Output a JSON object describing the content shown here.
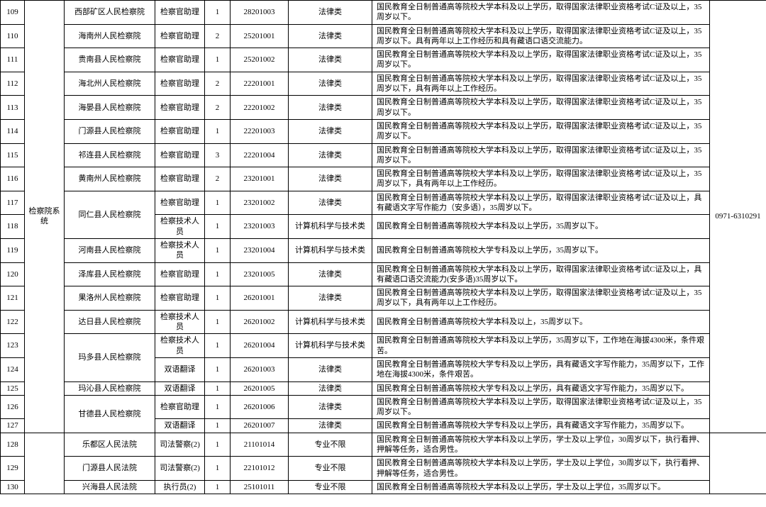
{
  "system_group1": "检察院系统",
  "phone1": "0971-6310291",
  "rows": [
    {
      "idx": "109",
      "org": "西部矿区人民检察院",
      "pos": "检察官助理",
      "cnt": "1",
      "code": "28201003",
      "cat": "法律类",
      "req": "国民教育全日制普通高等院校大学本科及以上学历，取得国家法律职业资格考试C证及以上，35周岁以下。"
    },
    {
      "idx": "110",
      "org": "海南州人民检察院",
      "pos": "检察官助理",
      "cnt": "2",
      "code": "25201001",
      "cat": "法律类",
      "req": "国民教育全日制普通高等院校大学本科及以上学历，取得国家法律职业资格考试C证及以上，35周岁以下。具有两年以上工作经历和具有藏语口语交流能力。"
    },
    {
      "idx": "111",
      "org": "贵南县人民检察院",
      "pos": "检察官助理",
      "cnt": "1",
      "code": "25201002",
      "cat": "法律类",
      "req": "国民教育全日制普通高等院校大学本科及以上学历，取得国家法律职业资格考试C证及以上，35周岁以下。"
    },
    {
      "idx": "112",
      "org": "海北州人民检察院",
      "pos": "检察官助理",
      "cnt": "2",
      "code": "22201001",
      "cat": "法律类",
      "req": "国民教育全日制普通高等院校大学本科及以上学历，取得国家法律职业资格考试C证及以上，35周岁以下，具有两年以上工作经历。"
    },
    {
      "idx": "113",
      "org": "海晏县人民检察院",
      "pos": "检察官助理",
      "cnt": "2",
      "code": "22201002",
      "cat": "法律类",
      "req": "国民教育全日制普通高等院校大学本科及以上学历，取得国家法律职业资格考试C证及以上，35周岁以下。"
    },
    {
      "idx": "114",
      "org": "门源县人民检察院",
      "pos": "检察官助理",
      "cnt": "1",
      "code": "22201003",
      "cat": "法律类",
      "req": "国民教育全日制普通高等院校大学本科及以上学历，取得国家法律职业资格考试C证及以上，35周岁以下。"
    },
    {
      "idx": "115",
      "org": "祁连县人民检察院",
      "pos": "检察官助理",
      "cnt": "3",
      "code": "22201004",
      "cat": "法律类",
      "req": "国民教育全日制普通高等院校大学本科及以上学历，取得国家法律职业资格考试C证及以上，35周岁以下。"
    },
    {
      "idx": "116",
      "org": "黄南州人民检察院",
      "pos": "检察官助理",
      "cnt": "2",
      "code": "23201001",
      "cat": "法律类",
      "req": "国民教育全日制普通高等院校大学本科及以上学历，取得国家法律职业资格考试C证及以上，35周岁以下，具有两年以上工作经历。"
    },
    {
      "idx": "117",
      "org": "同仁县人民检察院",
      "org_rowspan": 2,
      "pos": "检察官助理",
      "cnt": "1",
      "code": "23201002",
      "cat": "法律类",
      "req": "国民教育全日制普通高等院校大学本科及以上学历，取得国家法律职业资格考试C证及以上，具有藏语文字写作能力（安多语），35周岁以下。"
    },
    {
      "idx": "118",
      "pos": "检察技术人员",
      "cnt": "1",
      "code": "23201003",
      "cat": "计算机科学与技术类",
      "req": "国民教育全日制普通高等院校大学本科及以上学历，35周岁以下。"
    },
    {
      "idx": "119",
      "org": "河南县人民检察院",
      "pos": "检察技术人员",
      "cnt": "1",
      "code": "23201004",
      "cat": "计算机科学与技术类",
      "req": "国民教育全日制普通高等院校大学专科及以上学历，35周岁以下。"
    },
    {
      "idx": "120",
      "org": "泽库县人民检察院",
      "pos": "检察官助理",
      "cnt": "1",
      "code": "23201005",
      "cat": "法律类",
      "req": "国民教育全日制普通高等院校大学本科及以上学历，取得国家法律职业资格考试C证及以上，具有藏语口语交流能力(安多语)35周岁以下。"
    },
    {
      "idx": "121",
      "org": "果洛州人民检察院",
      "pos": "检察官助理",
      "cnt": "1",
      "code": "26201001",
      "cat": "法律类",
      "req": "国民教育全日制普通高等院校大学本科及以上学历，取得国家法律职业资格考试C证及以上，35周岁以下，具有两年以上工作经历。"
    },
    {
      "idx": "122",
      "org": "达日县人民检察院",
      "pos": "检察技术人员",
      "cnt": "1",
      "code": "26201002",
      "cat": "计算机科学与技术类",
      "req": "国民教育全日制普通高等院校大学本科及以上，35周岁以下。"
    },
    {
      "idx": "123",
      "org": "玛多县人民检察院",
      "org_rowspan": 2,
      "pos": "检察技术人员",
      "cnt": "1",
      "code": "26201004",
      "cat": "计算机科学与技术类",
      "req": "国民教育全日制普通高等院校大学本科及以上学历，35周岁以下，工作地在海拔4300米，条件艰苦。"
    },
    {
      "idx": "124",
      "pos": "双语翻译",
      "cnt": "1",
      "code": "26201003",
      "cat": "法律类",
      "req": "国民教育全日制普通高等院校大学专科及以上学历，具有藏语文字写作能力，35周岁以下，工作地在海拔4300米，条件艰苦。"
    },
    {
      "idx": "125",
      "org": "玛沁县人民检察院",
      "pos": "双语翻译",
      "cnt": "1",
      "code": "26201005",
      "cat": "法律类",
      "req": "国民教育全日制普通高等院校大学专科及以上学历，具有藏语文字写作能力，35周岁以下。"
    },
    {
      "idx": "126",
      "org": "甘德县人民检察院",
      "org_rowspan": 2,
      "pos": "检察官助理",
      "cnt": "1",
      "code": "26201006",
      "cat": "法律类",
      "req": "国民教育全日制普通高等院校大学本科及以上学历，取得国家法律职业资格考试C证及以上，35周岁以下。"
    },
    {
      "idx": "127",
      "pos": "双语翻译",
      "cnt": "1",
      "code": "26201007",
      "cat": "法律类",
      "req": "国民教育全日制普通高等院校大学专科及以上学历，具有藏语文字写作能力，35周岁以下。"
    },
    {
      "idx": "128",
      "org": "乐都区人民法院",
      "pos": "司法警察(2)",
      "cnt": "1",
      "code": "21101014",
      "cat": "专业不限",
      "req": "国民教育全日制普通高等院校大学本科及以上学历，学士及以上学位，30周岁以下，执行看押、押解等任务，适合男性。",
      "start_phone_group": true
    },
    {
      "idx": "129",
      "org": "门源县人民法院",
      "pos": "司法警察(2)",
      "cnt": "1",
      "code": "22101012",
      "cat": "专业不限",
      "req": "国民教育全日制普通高等院校大学本科及以上学历，学士及以上学位，30周岁以下，执行看押、押解等任务，适合男性。"
    },
    {
      "idx": "130",
      "org": "兴海县人民法院",
      "pos": "执行员(2)",
      "cnt": "1",
      "code": "25101011",
      "cat": "专业不限",
      "req": "国民教育全日制普通高等院校大学本科及以上学历，学士及以上学位，35周岁以下。"
    }
  ]
}
